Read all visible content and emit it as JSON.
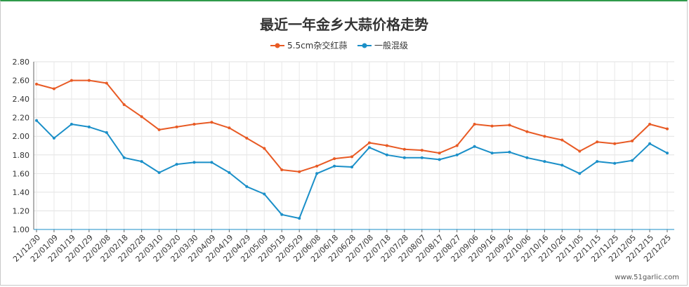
{
  "chart_data": {
    "type": "line",
    "title": "最近一年金乡大蒜价格走势",
    "xlabel": "",
    "ylabel": "",
    "ylim": [
      1.0,
      2.8
    ],
    "yticks": [
      "1.00",
      "1.20",
      "1.40",
      "1.60",
      "1.80",
      "2.00",
      "2.20",
      "2.40",
      "2.60",
      "2.80"
    ],
    "grid": true,
    "legend_position": "top-center",
    "x_dates": [
      "21/12/30",
      "22/01/09",
      "22/01/19",
      "22/01/29",
      "22/02/08",
      "22/02/18",
      "22/02/28",
      "22/03/10",
      "22/03/20",
      "22/03/30",
      "22/04/09",
      "22/04/19",
      "22/04/29",
      "22/05/09",
      "22/05/19",
      "22/05/29",
      "22/06/08",
      "22/06/18",
      "22/06/28",
      "22/07/08",
      "22/07/18",
      "22/07/28",
      "22/08/07",
      "22/08/17",
      "22/08/27",
      "22/09/06",
      "22/09/16",
      "22/09/26",
      "22/10/06",
      "22/10/16",
      "22/10/26",
      "22/11/05",
      "22/11/15",
      "22/11/25",
      "22/12/05",
      "22/12/15",
      "22/12/25"
    ],
    "series": [
      {
        "name": "5.5cm杂交红蒜",
        "color": "#e85a24",
        "values": [
          2.56,
          2.51,
          2.6,
          2.6,
          2.57,
          2.34,
          2.21,
          2.07,
          2.1,
          2.13,
          2.15,
          2.09,
          1.98,
          1.87,
          1.64,
          1.62,
          1.68,
          1.76,
          1.78,
          1.93,
          1.9,
          1.86,
          1.85,
          1.82,
          1.9,
          2.13,
          2.11,
          2.12,
          2.05,
          2.0,
          1.96,
          1.84,
          1.94,
          1.92,
          1.95,
          2.13,
          2.08
        ]
      },
      {
        "name": "一般混级",
        "color": "#1a8fc8",
        "values": [
          2.17,
          1.98,
          2.13,
          2.1,
          2.04,
          1.77,
          1.73,
          1.61,
          1.7,
          1.72,
          1.72,
          1.61,
          1.46,
          1.38,
          1.16,
          1.12,
          1.6,
          1.68,
          1.67,
          1.88,
          1.8,
          1.77,
          1.77,
          1.75,
          1.8,
          1.89,
          1.82,
          1.83,
          1.77,
          1.73,
          1.69,
          1.6,
          1.73,
          1.71,
          1.74,
          1.92,
          1.82
        ]
      }
    ]
  },
  "watermark": "www.51garlic.com"
}
